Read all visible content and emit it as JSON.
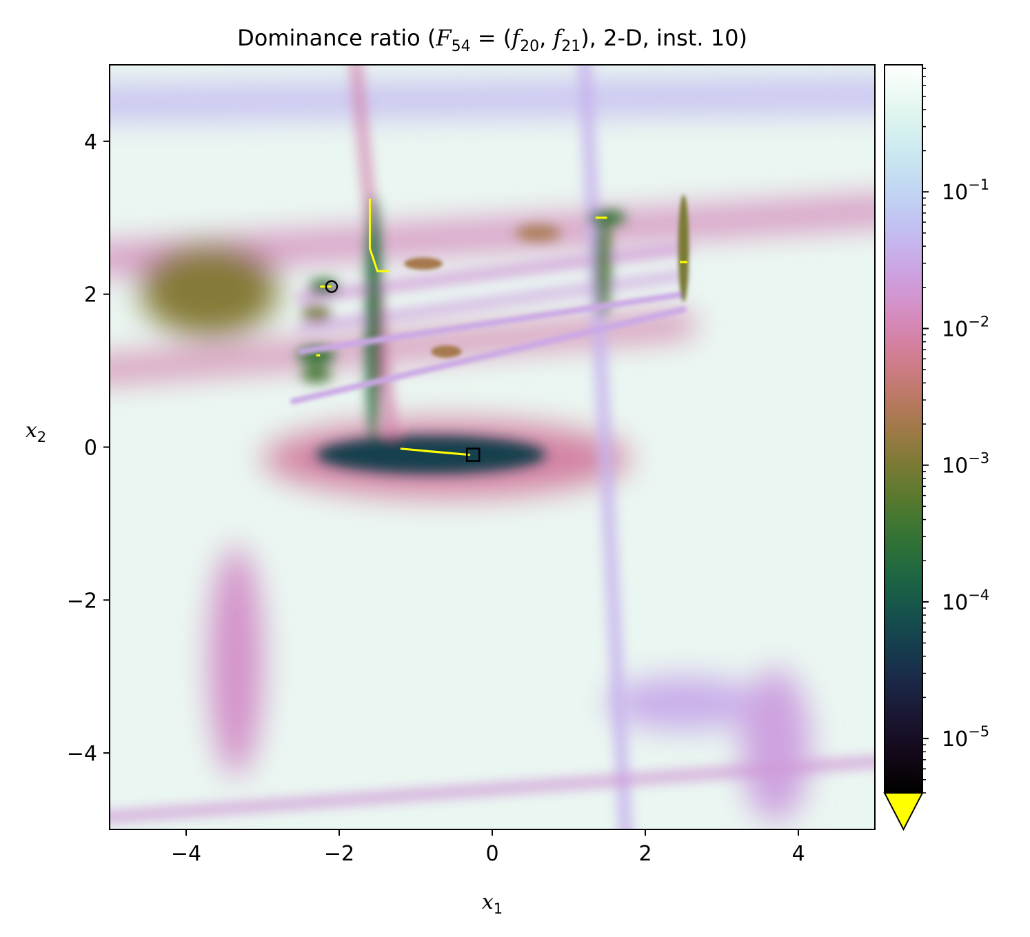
{
  "chart_data": {
    "type": "heatmap",
    "title": {
      "prefix": "Dominance ratio (",
      "F": "F",
      "F_sub": "54",
      "eq": " = (",
      "f1": "f",
      "f1_sub": "20",
      "comma": ", ",
      "f2": "f",
      "f2_sub": "21",
      "suffix": "), 2-D, inst. 10)"
    },
    "xlabel": {
      "base": "x",
      "sub": "1"
    },
    "ylabel": {
      "base": "x",
      "sub": "2"
    },
    "xlim": [
      -5,
      5
    ],
    "ylim": [
      -5,
      5
    ],
    "xticks": [
      {
        "value": -4,
        "label": "−4"
      },
      {
        "value": -2,
        "label": "−2"
      },
      {
        "value": 0,
        "label": "0"
      },
      {
        "value": 2,
        "label": "2"
      },
      {
        "value": 4,
        "label": "4"
      }
    ],
    "yticks": [
      {
        "value": 4,
        "label": "4"
      },
      {
        "value": 2,
        "label": "2"
      },
      {
        "value": 0,
        "label": "0"
      },
      {
        "value": -2,
        "label": "−2"
      },
      {
        "value": -4,
        "label": "−4"
      }
    ],
    "colorbar": {
      "scale": "log",
      "colormap": "cubehelix",
      "range": [
        4e-06,
        0.85
      ],
      "extend_min_color": "#ffff00",
      "ticks": [
        {
          "value": 0.1,
          "base": "10",
          "exp": "−1"
        },
        {
          "value": 0.01,
          "base": "10",
          "exp": "−2"
        },
        {
          "value": 0.001,
          "base": "10",
          "exp": "−3"
        },
        {
          "value": 0.0001,
          "base": "10",
          "exp": "−4"
        },
        {
          "value": 1e-05,
          "base": "10",
          "exp": "−5"
        }
      ]
    },
    "features": [
      {
        "kind": "band",
        "x1": -5.2,
        "y1": 2.45,
        "x2": 5.2,
        "y2": 3.1,
        "width": 0.35,
        "level": 0.012
      },
      {
        "kind": "band",
        "x1": -5.2,
        "y1": 1.0,
        "x2": 2.5,
        "y2": 1.6,
        "width": 0.3,
        "level": 0.01
      },
      {
        "kind": "band",
        "x1": -2.6,
        "y1": 0.6,
        "x2": 2.5,
        "y2": 1.8,
        "width": 0.08,
        "level": 0.03
      },
      {
        "kind": "band",
        "x1": -2.5,
        "y1": 1.95,
        "x2": 2.5,
        "y2": 2.6,
        "width": 0.12,
        "level": 0.02
      },
      {
        "kind": "band",
        "x1": -2.5,
        "y1": 1.55,
        "x2": 2.5,
        "y2": 2.25,
        "width": 0.1,
        "level": 0.025
      },
      {
        "kind": "band",
        "x1": -2.5,
        "y1": 1.25,
        "x2": 2.5,
        "y2": 2.0,
        "width": 0.08,
        "level": 0.03
      },
      {
        "kind": "band",
        "x1": -1.8,
        "y1": 5.2,
        "x2": -1.3,
        "y2": 0.0,
        "width": 0.12,
        "level": 0.01
      },
      {
        "kind": "band",
        "x1": 1.2,
        "y1": 5.2,
        "x2": 1.75,
        "y2": -5.2,
        "width": 0.15,
        "level": 0.04
      },
      {
        "kind": "band",
        "x1": -5.2,
        "y1": -4.85,
        "x2": 5.2,
        "y2": -4.1,
        "width": 0.12,
        "level": 0.02
      },
      {
        "kind": "band",
        "x1": -5.2,
        "y1": 4.5,
        "x2": 5.2,
        "y2": 4.6,
        "width": 0.4,
        "level": 0.05
      },
      {
        "kind": "ellipse",
        "cx": -3.7,
        "cy": 2.05,
        "rx": 0.9,
        "ry": 0.6,
        "level": 0.0012
      },
      {
        "kind": "ellipse",
        "cx": -0.6,
        "cy": -0.15,
        "rx": 2.4,
        "ry": 0.5,
        "level": 0.008
      },
      {
        "kind": "ellipse",
        "cx": -0.8,
        "cy": -0.1,
        "rx": 1.5,
        "ry": 0.25,
        "level": 5e-05
      },
      {
        "kind": "ellipse",
        "cx": -3.35,
        "cy": -2.8,
        "rx": 0.35,
        "ry": 1.5,
        "level": 0.015
      },
      {
        "kind": "ellipse",
        "cx": 2.5,
        "cy": -3.35,
        "rx": 1.0,
        "ry": 0.35,
        "level": 0.035
      },
      {
        "kind": "ellipse",
        "cx": 3.7,
        "cy": -3.9,
        "rx": 0.45,
        "ry": 1.0,
        "level": 0.025
      },
      {
        "kind": "ellipse",
        "cx": -1.55,
        "cy": 1.7,
        "rx": 0.1,
        "ry": 1.6,
        "level": 0.0002
      },
      {
        "kind": "ellipse",
        "cx": 1.45,
        "cy": 2.4,
        "rx": 0.1,
        "ry": 0.7,
        "level": 0.0005
      },
      {
        "kind": "ellipse",
        "cx": 2.5,
        "cy": 2.6,
        "rx": 0.07,
        "ry": 0.7,
        "level": 0.001
      },
      {
        "kind": "ellipse",
        "cx": -2.3,
        "cy": 1.2,
        "rx": 0.25,
        "ry": 0.12,
        "level": 0.0003
      },
      {
        "kind": "ellipse",
        "cx": -2.2,
        "cy": 2.1,
        "rx": 0.2,
        "ry": 0.1,
        "level": 0.0003
      },
      {
        "kind": "ellipse",
        "cx": -2.3,
        "cy": 0.95,
        "rx": 0.2,
        "ry": 0.1,
        "level": 0.0004
      },
      {
        "kind": "ellipse",
        "cx": -2.3,
        "cy": 1.75,
        "rx": 0.2,
        "ry": 0.1,
        "level": 0.001
      },
      {
        "kind": "ellipse",
        "cx": 0.6,
        "cy": 2.8,
        "rx": 0.3,
        "ry": 0.1,
        "level": 0.002
      },
      {
        "kind": "ellipse",
        "cx": 1.5,
        "cy": 3.0,
        "rx": 0.25,
        "ry": 0.1,
        "level": 0.0003
      },
      {
        "kind": "ellipse",
        "cx": -0.9,
        "cy": 2.4,
        "rx": 0.25,
        "ry": 0.08,
        "level": 0.002
      },
      {
        "kind": "ellipse",
        "cx": -0.6,
        "cy": 1.25,
        "rx": 0.2,
        "ry": 0.08,
        "level": 0.002
      }
    ],
    "markers": [
      {
        "shape": "circle",
        "x": -2.1,
        "y": 2.1
      },
      {
        "shape": "square",
        "x": -0.25,
        "y": -0.1
      }
    ],
    "below_min_regions": [
      {
        "points": [
          [
            -1.2,
            -0.02
          ],
          [
            -0.3,
            -0.1
          ],
          [
            -0.9,
            -0.05
          ]
        ]
      },
      {
        "points": [
          [
            -1.6,
            3.25
          ],
          [
            -1.6,
            2.6
          ],
          [
            -1.5,
            2.3
          ],
          [
            -1.35,
            2.3
          ]
        ]
      },
      {
        "points": [
          [
            1.35,
            3.0
          ],
          [
            1.5,
            3.0
          ]
        ]
      },
      {
        "points": [
          [
            2.45,
            2.42
          ],
          [
            2.55,
            2.42
          ]
        ]
      },
      {
        "points": [
          [
            -2.25,
            2.1
          ],
          [
            -2.1,
            2.1
          ]
        ]
      },
      {
        "points": [
          [
            -2.3,
            1.2
          ],
          [
            -2.25,
            1.2
          ]
        ]
      }
    ]
  }
}
